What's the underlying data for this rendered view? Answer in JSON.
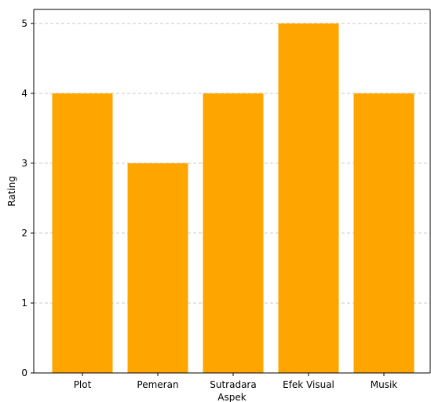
{
  "colors": {
    "bar": "#FFA500",
    "grid": "#c8c8c8",
    "axis": "#000000",
    "background": "#ffffff"
  },
  "chart_data": {
    "type": "bar",
    "title": "",
    "xlabel": "Aspek",
    "ylabel": "Rating",
    "categories": [
      "Plot",
      "Pemeran",
      "Sutradara",
      "Efek Visual",
      "Musik"
    ],
    "values": [
      4,
      3,
      4,
      5,
      4
    ],
    "ylim": [
      0,
      5.2
    ],
    "yticks": [
      "0",
      "1",
      "2",
      "3",
      "4",
      "5"
    ],
    "grid": "y-dashed",
    "legend": "none"
  }
}
